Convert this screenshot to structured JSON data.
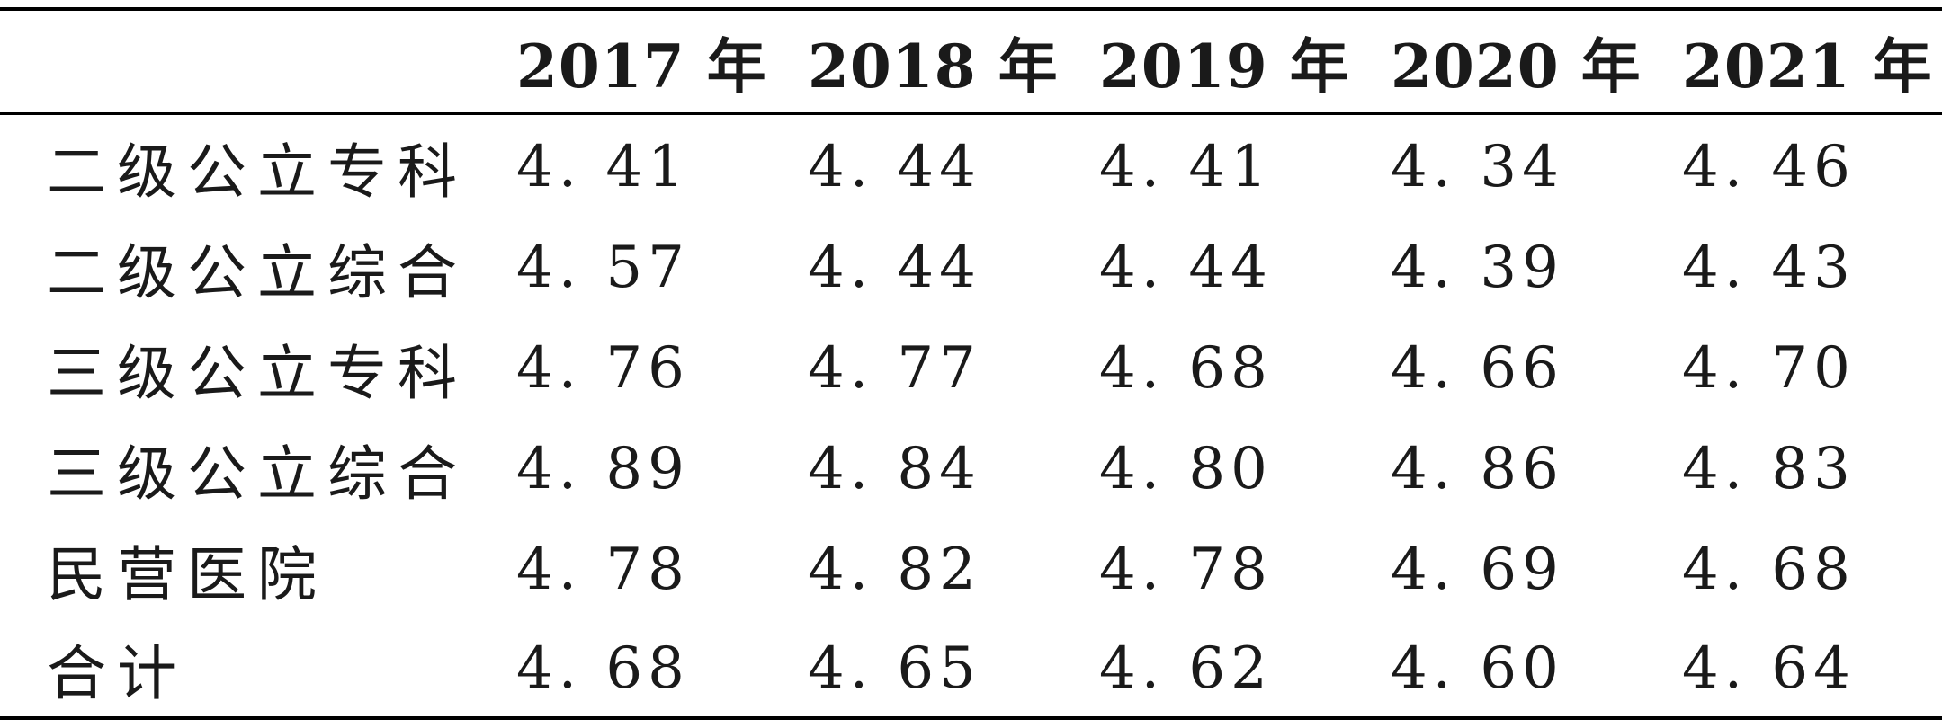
{
  "table": {
    "columns": [
      "2017 年",
      "2018 年",
      "2019 年",
      "2020 年",
      "2021 年"
    ],
    "rows": [
      {
        "label": "二级公立专科",
        "values": [
          "4. 41",
          "4. 44",
          "4. 41",
          "4. 34",
          "4. 46"
        ]
      },
      {
        "label": "二级公立综合",
        "values": [
          "4. 57",
          "4. 44",
          "4. 44",
          "4. 39",
          "4. 43"
        ]
      },
      {
        "label": "三级公立专科",
        "values": [
          "4. 76",
          "4. 77",
          "4. 68",
          "4. 66",
          "4. 70"
        ]
      },
      {
        "label": "三级公立综合",
        "values": [
          "4. 89",
          "4. 84",
          "4. 80",
          "4. 86",
          "4. 83"
        ]
      },
      {
        "label": "民营医院",
        "values": [
          "4. 78",
          "4. 82",
          "4. 78",
          "4. 69",
          "4. 68"
        ]
      },
      {
        "label": "合计",
        "values": [
          "4. 68",
          "4. 65",
          "4. 62",
          "4. 60",
          "4. 64"
        ]
      }
    ]
  }
}
